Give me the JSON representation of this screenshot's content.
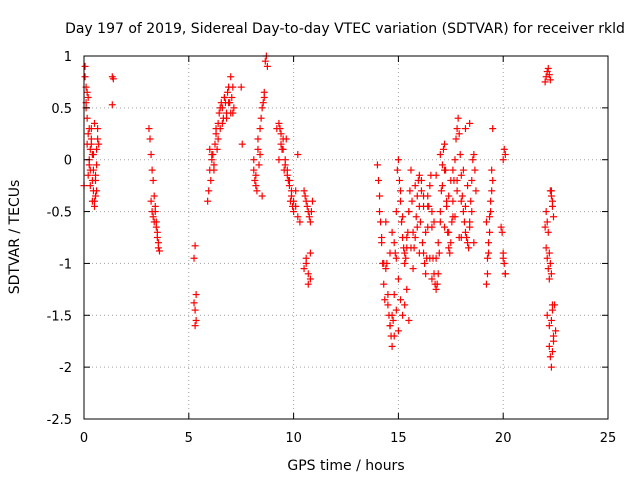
{
  "chart_data": {
    "type": "scatter",
    "title": "Day 197 of 2019, Sidereal Day-to-day VTEC variation (SDTVAR) for receiver rkld",
    "xlabel": "GPS time / hours",
    "ylabel": "SDTVAR / TECUs",
    "xlim": [
      0,
      25
    ],
    "ylim": [
      -2.5,
      1
    ],
    "xticks": [
      0,
      5,
      10,
      15,
      20,
      25
    ],
    "xtick_labels": [
      "0",
      "5",
      "10",
      "15",
      "20",
      "25"
    ],
    "yticks": [
      1,
      0.5,
      0,
      -0.5,
      -1,
      -1.5,
      -2,
      -2.5
    ],
    "ytick_labels": [
      "1",
      "0.5",
      "0",
      "-0.5",
      "-1",
      "-1.5",
      "-2",
      "-2.5"
    ],
    "grid": true,
    "marker": "plus",
    "color": "#ff0000",
    "series": [
      {
        "x": [
          0.0,
          0.05,
          0.1,
          0.15,
          0.2,
          0.25,
          0.3,
          0.35,
          0.4,
          0.45,
          0.5,
          0.55,
          0.6,
          0.65,
          0.7,
          0.05,
          0.1,
          0.15,
          0.2,
          0.25,
          0.3,
          0.35,
          0.4,
          0.45,
          0.5,
          0.55,
          0.6,
          0.65,
          0.1,
          0.2,
          0.3,
          0.4,
          0.5,
          0.6,
          0.15,
          0.25,
          0.35,
          0.45,
          0.55,
          1.35,
          1.4,
          1.35,
          3.1,
          3.15,
          3.2,
          3.25,
          3.3,
          3.35,
          3.4,
          3.45,
          3.5,
          3.55,
          3.2,
          3.25,
          3.3,
          3.35,
          3.4,
          3.45,
          3.5,
          3.55,
          3.6,
          5.25,
          5.3,
          5.35,
          5.3,
          5.35,
          5.25,
          5.3,
          5.9,
          5.95,
          6.0,
          6.05,
          6.1,
          6.15,
          6.2,
          6.25,
          6.3,
          6.35,
          6.4,
          6.45,
          6.5,
          6.55,
          6.6,
          6.65,
          6.7,
          6.75,
          6.8,
          6.85,
          6.9,
          6.95,
          7.0,
          7.05,
          7.1,
          7.15,
          6.0,
          6.1,
          6.2,
          6.3,
          6.4,
          6.5,
          6.6,
          6.7,
          6.8,
          6.9,
          7.0,
          7.1,
          7.5,
          7.55,
          8.1,
          8.15,
          8.2,
          8.25,
          8.3,
          8.35,
          8.4,
          8.45,
          8.5,
          8.55,
          8.6,
          8.65,
          8.7,
          8.75,
          8.1,
          8.2,
          8.3,
          8.4,
          8.5,
          8.6,
          9.2,
          9.3,
          9.4,
          9.5,
          9.6,
          9.7,
          9.8,
          9.9,
          10.0,
          10.1,
          10.2,
          10.3,
          9.3,
          9.4,
          9.5,
          9.6,
          9.7,
          9.8,
          9.9,
          10.0,
          10.1,
          10.2,
          9.35,
          9.45,
          9.55,
          9.65,
          9.75,
          9.85,
          9.95,
          10.5,
          10.55,
          10.6,
          10.65,
          10.7,
          10.75,
          10.8,
          10.85,
          10.9,
          10.6,
          10.7,
          10.8,
          10.5,
          10.6,
          10.7,
          10.8,
          14.0,
          14.05,
          14.1,
          14.15,
          14.2,
          14.25,
          14.3,
          14.35,
          14.4,
          14.45,
          14.5,
          14.55,
          14.6,
          14.65,
          14.7,
          14.75,
          14.8,
          14.85,
          14.9,
          14.95,
          15.0,
          15.05,
          15.1,
          15.15,
          15.2,
          15.25,
          15.3,
          15.35,
          15.4,
          15.45,
          15.5,
          15.55,
          15.6,
          15.65,
          15.7,
          15.75,
          15.8,
          15.85,
          15.9,
          15.95,
          16.0,
          16.05,
          16.1,
          16.15,
          16.2,
          16.25,
          16.3,
          16.35,
          16.4,
          16.45,
          16.5,
          16.55,
          16.6,
          16.65,
          16.7,
          16.75,
          16.8,
          16.85,
          16.9,
          16.95,
          17.0,
          17.05,
          17.1,
          17.15,
          17.2,
          17.25,
          17.3,
          17.35,
          17.4,
          17.45,
          17.5,
          17.55,
          17.6,
          17.65,
          17.7,
          17.75,
          17.8,
          17.85,
          17.9,
          17.95,
          18.0,
          18.05,
          18.1,
          18.15,
          18.2,
          18.25,
          18.3,
          18.35,
          18.4,
          18.45,
          18.5,
          18.55,
          18.6,
          18.65,
          18.7,
          14.1,
          14.2,
          14.3,
          14.4,
          14.5,
          14.6,
          14.7,
          14.8,
          14.9,
          15.0,
          15.1,
          15.2,
          15.3,
          15.4,
          15.5,
          15.6,
          15.7,
          15.8,
          15.9,
          16.0,
          16.1,
          16.2,
          16.3,
          16.4,
          16.5,
          16.6,
          16.7,
          16.8,
          16.9,
          17.0,
          17.1,
          17.2,
          17.3,
          17.4,
          17.5,
          17.6,
          17.7,
          17.8,
          17.9,
          18.0,
          18.1,
          18.2,
          18.3,
          18.4,
          18.5,
          18.6,
          14.6,
          14.7,
          14.8,
          14.9,
          15.0,
          15.1,
          15.2,
          15.3,
          15.4,
          15.5,
          16.0,
          16.2,
          16.4,
          16.6,
          16.8,
          17.0,
          17.2,
          17.4,
          17.6,
          17.8,
          18.0,
          18.2,
          18.4,
          19.2,
          19.25,
          19.3,
          19.35,
          19.4,
          19.45,
          19.5,
          19.2,
          19.3,
          19.4,
          19.5,
          19.25,
          19.35,
          19.45,
          19.9,
          19.95,
          20.0,
          20.05,
          20.1,
          20.0,
          20.05,
          20.1,
          20.0,
          20.1,
          22.0,
          22.05,
          22.1,
          22.15,
          22.2,
          22.25,
          22.3,
          22.35,
          22.4,
          22.0,
          22.05,
          22.1,
          22.15,
          22.2,
          22.25,
          22.3,
          22.35,
          22.05,
          22.1,
          22.15,
          22.2,
          22.25,
          22.3,
          22.35,
          22.1,
          22.2,
          22.3,
          22.35,
          22.4,
          22.2,
          22.25,
          22.3,
          22.35,
          22.4,
          22.45,
          22.5
        ],
        "y": [
          -0.25,
          0.9,
          0.7,
          0.4,
          0.6,
          0.3,
          -0.1,
          0.2,
          0.05,
          -0.3,
          -0.45,
          -0.2,
          0.1,
          0.3,
          0.15,
          0.8,
          0.5,
          0.15,
          -0.15,
          0.0,
          -0.25,
          0.3,
          -0.4,
          -0.1,
          0.35,
          -0.35,
          -0.05,
          0.2,
          0.55,
          0.25,
          0.1,
          -0.2,
          -0.4,
          -0.3,
          0.65,
          -0.05,
          0.15,
          0.05,
          -0.15,
          0.8,
          0.78,
          0.53,
          0.3,
          0.2,
          0.05,
          -0.1,
          -0.2,
          -0.35,
          -0.5,
          -0.6,
          -0.7,
          -0.85,
          -0.4,
          -0.5,
          -0.55,
          -0.6,
          -0.45,
          -0.65,
          -0.75,
          -0.8,
          -0.88,
          -0.95,
          -0.83,
          -1.3,
          -1.45,
          -1.55,
          -1.38,
          -1.6,
          -0.4,
          -0.3,
          -0.1,
          -0.2,
          0.0,
          0.05,
          -0.05,
          0.15,
          0.25,
          0.1,
          0.35,
          0.45,
          0.3,
          0.55,
          0.5,
          0.4,
          0.6,
          0.55,
          0.45,
          0.65,
          0.7,
          0.55,
          0.8,
          0.6,
          0.45,
          0.5,
          0.1,
          0.05,
          -0.1,
          0.3,
          0.2,
          0.5,
          0.35,
          0.6,
          0.4,
          0.55,
          0.45,
          0.7,
          0.7,
          0.15,
          -0.1,
          -0.2,
          -0.15,
          -0.3,
          0.1,
          -0.05,
          0.3,
          0.4,
          0.5,
          0.55,
          0.65,
          0.95,
          1.0,
          0.9,
          0.0,
          -0.25,
          0.2,
          0.05,
          -0.35,
          0.6,
          0.3,
          0.35,
          0.25,
          0.1,
          0.0,
          -0.1,
          -0.2,
          -0.3,
          -0.4,
          -0.45,
          -0.55,
          -0.6,
          0.0,
          0.15,
          0.2,
          -0.05,
          -0.15,
          -0.25,
          -0.35,
          -0.5,
          -0.3,
          0.05,
          0.3,
          0.1,
          -0.1,
          0.2,
          -0.2,
          -0.4,
          -0.45,
          -0.3,
          -0.35,
          -0.4,
          -0.45,
          -0.5,
          -0.55,
          -0.6,
          -0.5,
          -0.4,
          -1.0,
          -1.1,
          -1.15,
          -1.05,
          -0.95,
          -1.2,
          -0.9,
          -0.05,
          -0.2,
          -0.35,
          -0.6,
          -0.75,
          -1.0,
          -1.2,
          -1.35,
          -1.05,
          -1.0,
          -1.4,
          -1.5,
          -1.6,
          -1.7,
          -1.8,
          -1.55,
          -1.3,
          -0.9,
          -0.5,
          -0.1,
          0.0,
          -0.2,
          -0.4,
          -0.6,
          -0.75,
          -0.85,
          -0.9,
          -0.95,
          -0.85,
          -0.7,
          -0.5,
          -0.3,
          -0.1,
          -0.4,
          -0.7,
          -0.85,
          -0.75,
          -0.55,
          -0.35,
          -0.2,
          -0.45,
          -0.6,
          -0.3,
          -0.8,
          -0.9,
          -1.0,
          -1.1,
          -0.95,
          -0.65,
          -0.45,
          -0.25,
          -0.15,
          -0.5,
          -0.95,
          -1.1,
          -1.2,
          -1.25,
          -1.2,
          -1.1,
          -0.9,
          -0.6,
          -0.3,
          -0.05,
          0.1,
          0.15,
          -0.1,
          -0.4,
          -0.7,
          -0.85,
          -0.9,
          -0.8,
          -0.6,
          -0.4,
          -0.2,
          0.0,
          0.2,
          0.3,
          0.4,
          0.25,
          0.05,
          -0.15,
          -0.35,
          -0.5,
          -0.6,
          -0.7,
          -0.75,
          -0.8,
          -0.85,
          -0.6,
          -0.4,
          -0.2,
          0.0,
          0.05,
          -0.1,
          -0.3,
          -0.5,
          -0.8,
          -1.0,
          -0.6,
          -1.3,
          -0.9,
          -0.7,
          -0.8,
          -0.95,
          -1.15,
          -0.3,
          -0.55,
          -1.0,
          -0.75,
          -0.5,
          -0.85,
          -1.05,
          -0.25,
          -0.65,
          -0.9,
          -0.2,
          -0.45,
          -0.7,
          -0.35,
          -0.95,
          -1.15,
          -0.6,
          -0.15,
          -0.8,
          -0.5,
          -0.25,
          -0.65,
          -0.45,
          -0.7,
          -0.2,
          -0.1,
          -0.55,
          -0.3,
          -0.75,
          -0.4,
          -0.1,
          0.3,
          -0.25,
          -0.65,
          -0.5,
          -0.8,
          -1.6,
          -1.5,
          -1.7,
          -1.45,
          -1.65,
          -1.35,
          -1.5,
          -1.4,
          -1.25,
          -1.55,
          -0.15,
          -0.35,
          -0.45,
          -0.65,
          -0.95,
          0.05,
          -0.1,
          -0.35,
          -0.55,
          -0.2,
          -0.75,
          -0.45,
          0.35,
          -1.2,
          -1.1,
          -0.9,
          -0.7,
          -0.5,
          -0.3,
          0.3,
          -0.6,
          -0.8,
          -0.4,
          -0.2,
          -0.95,
          -0.55,
          -0.1,
          -0.65,
          -0.7,
          -0.9,
          -1.0,
          -1.1,
          0.0,
          0.1,
          0.05,
          -0.95,
          -1.1,
          0.75,
          0.8,
          0.85,
          0.88,
          0.82,
          0.77,
          -0.3,
          -0.4,
          -0.55,
          -0.65,
          -0.85,
          -0.95,
          -1.05,
          -1.15,
          -0.3,
          -0.35,
          -0.45,
          -0.5,
          -0.6,
          -0.7,
          -0.9,
          -1.0,
          -1.1,
          -1.4,
          -1.5,
          -1.6,
          -1.55,
          -1.45,
          -1.7,
          -1.8,
          -1.9,
          -2.0,
          -1.85,
          -1.75,
          -1.4,
          -1.65
        ]
      }
    ]
  }
}
